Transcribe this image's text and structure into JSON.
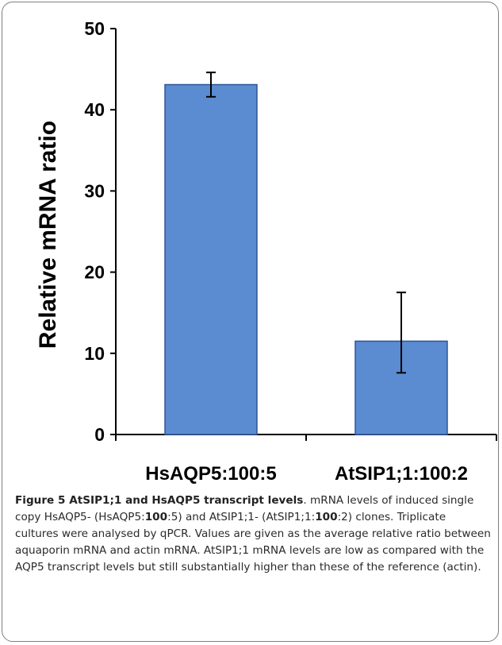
{
  "chart_data": {
    "type": "bar",
    "categories": [
      "HsAQP5:100:5",
      "AtSIP1;1:100:2"
    ],
    "values": [
      43.1,
      11.5
    ],
    "errors": [
      [
        41.6,
        44.6
      ],
      [
        7.6,
        17.5
      ]
    ],
    "ylabel": "Relative mRNA ratio",
    "ylim": [
      0,
      50
    ],
    "yticks": [
      "0",
      "10",
      "20",
      "30",
      "40",
      "50"
    ],
    "bar_color": "#5b8bd0",
    "bar_edge_color": "#2f5597",
    "grid": false,
    "legend": "none"
  },
  "caption": {
    "title": "Figure 5 AtSIP1;1 and HsAQP5 transcript levels",
    "part1": ". mRNA levels of induced single copy HsAQP5- (HsAQP5:",
    "bold1": "100",
    "part2": ":5) and AtSIP1;1- (AtSIP1;1:",
    "bold2": "100",
    "part3": ":2) clones. Triplicate cultures were analysed by qPCR. Values are given as the average relative ratio between aquaporin mRNA and actin mRNA. AtSIP1;1 mRNA levels are low as compared with the AQP5 transcript levels but still substantially higher than these of the reference (actin)."
  }
}
